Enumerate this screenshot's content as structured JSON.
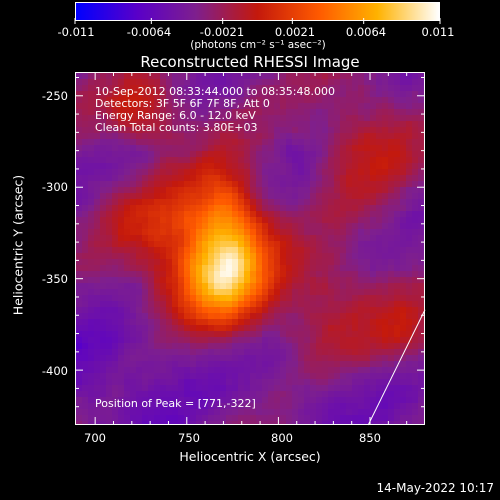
{
  "colorbar": {
    "tick_labels": [
      "-0.011",
      "-0.0064",
      "-0.0021",
      "0.0021",
      "0.0064",
      "0.011"
    ],
    "min": -0.011,
    "max": 0.011,
    "units_label": "(photons cm⁻² s⁻¹ asec⁻²)",
    "colors": [
      "#0000ff",
      "#5a00c8",
      "#7e1f8e",
      "#c4190c",
      "#ff5a00",
      "#ffb200",
      "#ffffff"
    ]
  },
  "plot": {
    "title": "Reconstructed RHESSI Image",
    "annotations": [
      "10-Sep-2012 08:33:44.000 to 08:35:48.000",
      "Detectors: 3F 5F 6F 7F 8F, Att 0",
      "Energy Range: 6.0 - 12.0 keV",
      "Clean     Total counts: 3.80E+03"
    ],
    "peak_label": "Position of Peak = [771,-322]",
    "xlabel": "Heliocentric X (arcsec)",
    "ylabel": "Heliocentric Y (arcsec)",
    "xlim": [
      689,
      880
    ],
    "ylim": [
      -430,
      -237
    ],
    "x_tick_labels": [
      "700",
      "750",
      "800",
      "850"
    ],
    "y_tick_labels": [
      "-250",
      "-300",
      "-350",
      "-400"
    ],
    "peak": [
      771,
      -322
    ]
  },
  "footer": {
    "timestamp": "14-May-2022 10:17"
  }
}
